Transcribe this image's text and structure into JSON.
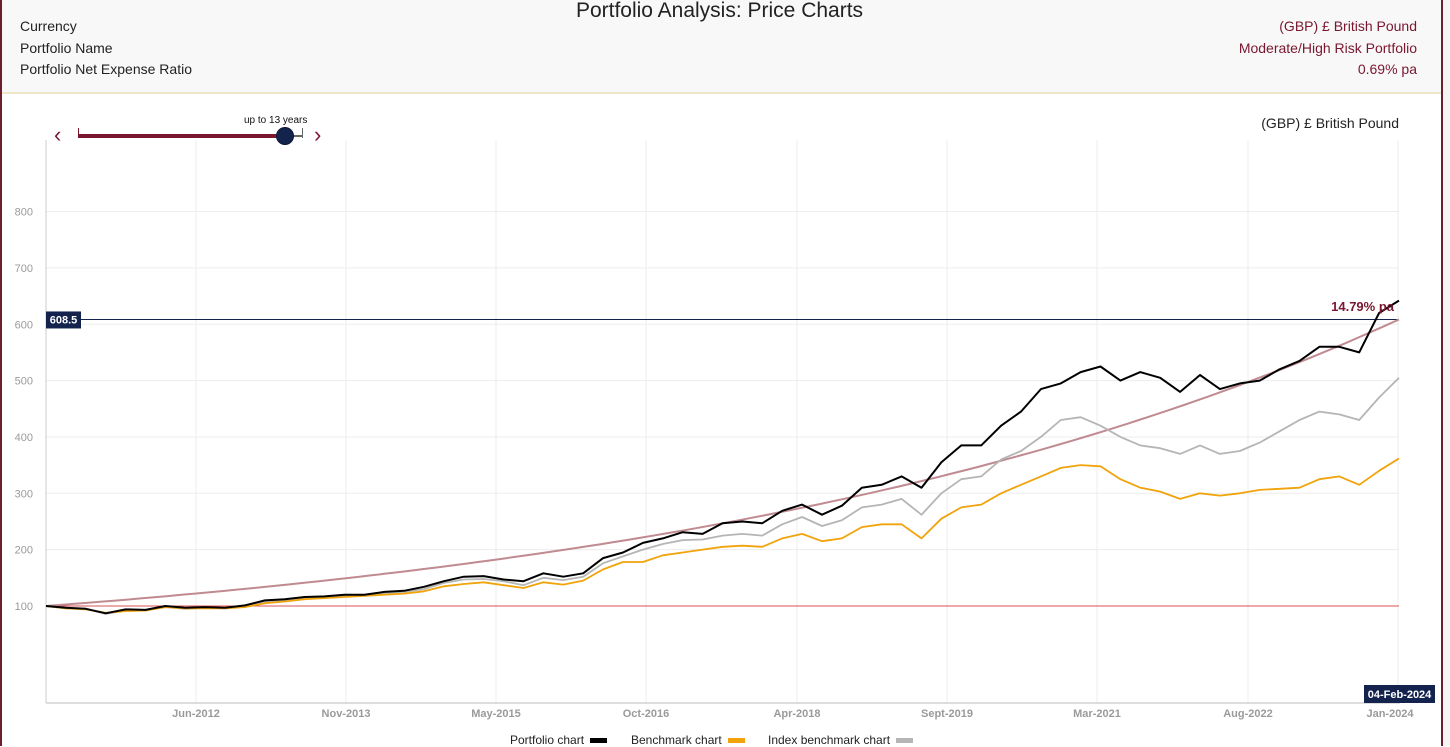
{
  "header": {
    "title": "Portfolio Analysis: Price Charts",
    "rows": [
      {
        "label": "Currency",
        "value": "(GBP) £ British Pound"
      },
      {
        "label": "Portfolio Name",
        "value": "Moderate/High Risk Portfolio"
      },
      {
        "label": "Portfolio Net Expense Ratio",
        "value": "0.69% pa"
      }
    ]
  },
  "currency_label": "(GBP) £ British Pound",
  "slider": {
    "caption": "up to 13 years",
    "prev_icon": "chevron-left-icon",
    "next_icon": "chevron-right-icon",
    "value_fraction": 0.95
  },
  "legend": [
    {
      "label": "Portfolio chart",
      "color": "#000000"
    },
    {
      "label": "Benchmark chart",
      "color": "#f0a30a"
    },
    {
      "label": "Index benchmark chart",
      "color": "#b5b5b5"
    }
  ],
  "colors": {
    "accent": "#7a1630",
    "navy": "#13234e",
    "baseline": "#d9534f",
    "trend": "#c08a91"
  },
  "chart_data": {
    "type": "line",
    "x_start": "2011-02",
    "x_end": "2024-02",
    "x_ticks": [
      "Jun-2012",
      "Nov-2013",
      "May-2015",
      "Oct-2016",
      "Apr-2018",
      "Sept-2019",
      "Mar-2021",
      "Aug-2022",
      "Jan-2024"
    ],
    "y_ticks": [
      100,
      200,
      300,
      400,
      500,
      600,
      700,
      800
    ],
    "ylim": [
      0,
      980
    ],
    "grid": true,
    "baseline": 100,
    "reference_line": {
      "value": 608.5,
      "label": "608.5"
    },
    "trend_annotation": "14.79% pa",
    "end_date_label": "04-Feb-2024",
    "legend_position": "bottom",
    "series": [
      {
        "name": "Portfolio chart",
        "color": "#000000",
        "values": [
          100,
          97,
          95,
          87,
          94,
          93,
          100,
          97,
          98,
          97,
          101,
          110,
          112,
          116,
          117,
          120,
          120,
          125,
          127,
          134,
          144,
          152,
          153,
          147,
          144,
          158,
          152,
          158,
          185,
          195,
          212,
          220,
          231,
          228,
          247,
          250,
          247,
          269,
          280,
          262,
          278,
          310,
          315,
          330,
          310,
          355,
          385,
          385,
          420,
          445,
          485,
          495,
          515,
          525,
          500,
          515,
          505,
          480,
          510,
          485,
          495,
          500,
          520,
          535,
          560,
          560,
          550,
          620,
          642
        ]
      },
      {
        "name": "Benchmark chart",
        "color": "#f0a30a",
        "values": [
          100,
          96,
          94,
          88,
          91,
          92,
          98,
          96,
          96,
          96,
          98,
          105,
          108,
          112,
          114,
          116,
          118,
          120,
          122,
          126,
          135,
          139,
          142,
          137,
          132,
          142,
          138,
          145,
          165,
          178,
          178,
          190,
          195,
          200,
          205,
          207,
          205,
          220,
          228,
          215,
          220,
          240,
          245,
          245,
          220,
          255,
          275,
          280,
          300,
          315,
          330,
          345,
          350,
          348,
          325,
          310,
          303,
          290,
          300,
          296,
          300,
          306,
          308,
          310,
          325,
          330,
          315,
          340,
          362
        ]
      },
      {
        "name": "Index benchmark chart",
        "color": "#b5b5b5",
        "values": [
          100,
          96,
          95,
          86,
          92,
          92,
          98,
          95,
          97,
          96,
          99,
          108,
          110,
          115,
          116,
          118,
          119,
          123,
          125,
          130,
          141,
          147,
          148,
          144,
          137,
          150,
          146,
          152,
          176,
          188,
          200,
          210,
          217,
          218,
          225,
          228,
          225,
          245,
          258,
          242,
          252,
          275,
          280,
          290,
          262,
          300,
          325,
          330,
          360,
          375,
          400,
          430,
          435,
          420,
          400,
          385,
          380,
          370,
          385,
          370,
          375,
          390,
          410,
          430,
          445,
          440,
          430,
          470,
          505
        ]
      },
      {
        "name": "",
        "color": "#c08a91",
        "role": "trend",
        "values": [
          100,
          608.5
        ]
      }
    ]
  }
}
